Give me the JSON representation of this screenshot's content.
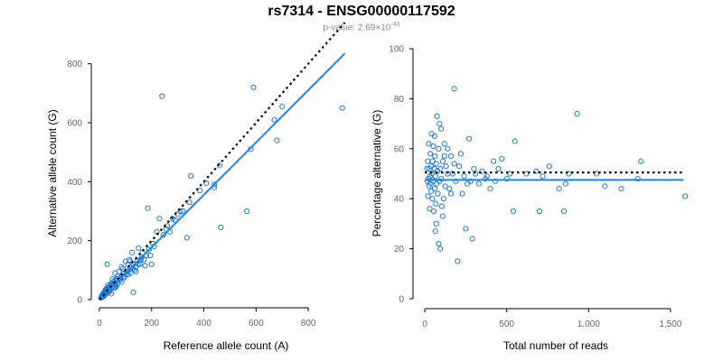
{
  "figure": {
    "title": "rs7314 - ENSG00000117592",
    "subtitle_prefix": "p-value: 2.69×10",
    "subtitle_exponent": "-43"
  },
  "colors": {
    "points": "#1f7ad6",
    "fit_line": "#1f86e8",
    "reference_line": "#000000",
    "tick_text": "#666666"
  },
  "chart_data": [
    {
      "type": "scatter",
      "title": "",
      "xlabel": "Reference allele count (A)",
      "ylabel": "Alternative allele count (G)",
      "xlim": [
        0,
        900
      ],
      "ylim": [
        0,
        900
      ],
      "xticks": [
        0,
        200,
        400,
        600,
        800
      ],
      "xtick_labels": [
        "0",
        "200",
        "400",
        "600",
        "800"
      ],
      "yticks": [
        0,
        200,
        400,
        600,
        800
      ],
      "ytick_labels": [
        "0",
        "200",
        "400",
        "600",
        "800"
      ],
      "reference_line": {
        "style": "dotted",
        "x": [
          0,
          940
        ],
        "y": [
          0,
          940
        ]
      },
      "fit_line": {
        "style": "solid",
        "x": [
          0,
          940
        ],
        "y": [
          0,
          835
        ]
      },
      "grid": false,
      "points": [
        [
          240,
          690
        ],
        [
          590,
          720
        ],
        [
          930,
          650
        ],
        [
          700,
          655
        ],
        [
          670,
          610
        ],
        [
          680,
          540
        ],
        [
          580,
          510
        ],
        [
          565,
          300
        ],
        [
          460,
          455
        ],
        [
          465,
          245
        ],
        [
          440,
          390
        ],
        [
          440,
          380
        ],
        [
          350,
          420
        ],
        [
          335,
          210
        ],
        [
          310,
          300
        ],
        [
          300,
          290
        ],
        [
          280,
          275
        ],
        [
          260,
          250
        ],
        [
          230,
          275
        ],
        [
          220,
          230
        ],
        [
          205,
          190
        ],
        [
          200,
          120
        ],
        [
          195,
          150
        ],
        [
          185,
          310
        ],
        [
          175,
          115
        ],
        [
          165,
          160
        ],
        [
          160,
          140
        ],
        [
          150,
          175
        ],
        [
          145,
          130
        ],
        [
          140,
          95
        ],
        [
          130,
          120
        ],
        [
          125,
          160
        ],
        [
          120,
          110
        ],
        [
          115,
          135
        ],
        [
          110,
          120
        ],
        [
          105,
          95
        ],
        [
          100,
          130
        ],
        [
          95,
          80
        ],
        [
          90,
          105
        ],
        [
          85,
          110
        ],
        [
          80,
          75
        ],
        [
          75,
          95
        ],
        [
          70,
          80
        ],
        [
          65,
          70
        ],
        [
          60,
          90
        ],
        [
          55,
          60
        ],
        [
          50,
          70
        ],
        [
          45,
          55
        ],
        [
          40,
          45
        ],
        [
          35,
          50
        ],
        [
          30,
          40
        ],
        [
          28,
          25
        ],
        [
          25,
          35
        ],
        [
          22,
          30
        ],
        [
          20,
          20
        ],
        [
          18,
          25
        ],
        [
          15,
          15
        ],
        [
          12,
          18
        ],
        [
          10,
          12
        ],
        [
          8,
          10
        ],
        [
          30,
          120
        ],
        [
          45,
          20
        ],
        [
          60,
          40
        ],
        [
          70,
          55
        ],
        [
          85,
          60
        ],
        [
          95,
          75
        ],
        [
          110,
          85
        ],
        [
          120,
          90
        ],
        [
          140,
          110
        ],
        [
          155,
          120
        ],
        [
          170,
          135
        ],
        [
          180,
          150
        ],
        [
          130,
          25
        ],
        [
          65,
          45
        ],
        [
          55,
          40
        ],
        [
          40,
          30
        ],
        [
          35,
          25
        ],
        [
          25,
          20
        ],
        [
          20,
          15
        ],
        [
          15,
          10
        ],
        [
          50,
          45
        ],
        [
          42,
          38
        ],
        [
          38,
          30
        ],
        [
          33,
          28
        ],
        [
          27,
          30
        ],
        [
          24,
          22
        ],
        [
          18,
          16
        ],
        [
          14,
          14
        ],
        [
          10,
          8
        ],
        [
          6,
          6
        ],
        [
          75,
          65
        ],
        [
          82,
          70
        ],
        [
          92,
          88
        ],
        [
          102,
          85
        ],
        [
          112,
          100
        ],
        [
          118,
          130
        ],
        [
          128,
          105
        ],
        [
          135,
          100
        ],
        [
          148,
          120
        ],
        [
          158,
          135
        ],
        [
          190,
          170
        ],
        [
          210,
          180
        ],
        [
          245,
          220
        ],
        [
          255,
          240
        ],
        [
          270,
          230
        ],
        [
          290,
          270
        ],
        [
          320,
          300
        ],
        [
          345,
          330
        ],
        [
          385,
          370
        ],
        [
          410,
          395
        ],
        [
          60,
          55
        ],
        [
          62,
          50
        ],
        [
          58,
          65
        ],
        [
          48,
          52
        ],
        [
          44,
          48
        ],
        [
          36,
          40
        ],
        [
          32,
          36
        ],
        [
          26,
          28
        ],
        [
          21,
          24
        ],
        [
          16,
          18
        ]
      ]
    },
    {
      "type": "scatter",
      "title": "",
      "xlabel": "Total number of reads",
      "ylabel": "Percentage alternative (G)",
      "xlim": [
        0,
        1600
      ],
      "ylim": [
        0,
        100
      ],
      "xticks": [
        0,
        500,
        1000,
        1500
      ],
      "xtick_labels": [
        "0",
        "500",
        "1,000",
        "1,500"
      ],
      "yticks": [
        0,
        20,
        40,
        60,
        80,
        100
      ],
      "ytick_labels": [
        "0",
        "20",
        "40",
        "60",
        "80",
        "100"
      ],
      "reference_line": {
        "style": "dotted",
        "x": [
          0,
          1580
        ],
        "y": [
          50.5,
          50.5
        ]
      },
      "fit_line": {
        "style": "solid",
        "x": [
          0,
          1580
        ],
        "y": [
          47.5,
          47.5
        ]
      },
      "grid": false,
      "points": [
        [
          1590,
          41
        ],
        [
          1320,
          55
        ],
        [
          1300,
          48
        ],
        [
          1200,
          44
        ],
        [
          1100,
          45
        ],
        [
          1050,
          50
        ],
        [
          930,
          74
        ],
        [
          880,
          50
        ],
        [
          860,
          46
        ],
        [
          850,
          35
        ],
        [
          820,
          44
        ],
        [
          760,
          53
        ],
        [
          720,
          49
        ],
        [
          700,
          35
        ],
        [
          680,
          51
        ],
        [
          620,
          50
        ],
        [
          550,
          63
        ],
        [
          540,
          35
        ],
        [
          520,
          50
        ],
        [
          470,
          56
        ],
        [
          450,
          52
        ],
        [
          430,
          47
        ],
        [
          400,
          44
        ],
        [
          370,
          48
        ],
        [
          350,
          51
        ],
        [
          310,
          50
        ],
        [
          290,
          24
        ],
        [
          270,
          64
        ],
        [
          260,
          46
        ],
        [
          250,
          28
        ],
        [
          230,
          42
        ],
        [
          210,
          53
        ],
        [
          200,
          15
        ],
        [
          190,
          47
        ],
        [
          180,
          84
        ],
        [
          170,
          50
        ],
        [
          160,
          57
        ],
        [
          150,
          44
        ],
        [
          140,
          50
        ],
        [
          130,
          53
        ],
        [
          125,
          45
        ],
        [
          120,
          62
        ],
        [
          115,
          40
        ],
        [
          110,
          55
        ],
        [
          105,
          37
        ],
        [
          100,
          48
        ],
        [
          95,
          52
        ],
        [
          90,
          47
        ],
        [
          85,
          60
        ],
        [
          80,
          42
        ],
        [
          78,
          51
        ],
        [
          75,
          73
        ],
        [
          72,
          46
        ],
        [
          70,
          54
        ],
        [
          68,
          38
        ],
        [
          65,
          49
        ],
        [
          62,
          57
        ],
        [
          60,
          44
        ],
        [
          58,
          52
        ],
        [
          55,
          35
        ],
        [
          52,
          61
        ],
        [
          50,
          47
        ],
        [
          48,
          55
        ],
        [
          46,
          40
        ],
        [
          44,
          50
        ],
        [
          42,
          66
        ],
        [
          40,
          43
        ],
        [
          38,
          53
        ],
        [
          36,
          46
        ],
        [
          34,
          58
        ],
        [
          32,
          49
        ],
        [
          30,
          36
        ],
        [
          28,
          52
        ],
        [
          26,
          45
        ],
        [
          24,
          62
        ],
        [
          22,
          48
        ],
        [
          20,
          41
        ],
        [
          18,
          55
        ],
        [
          16,
          47
        ],
        [
          14,
          52
        ],
        [
          85,
          22
        ],
        [
          95,
          20
        ],
        [
          70,
          30
        ],
        [
          110,
          33
        ],
        [
          65,
          27
        ],
        [
          90,
          70
        ],
        [
          100,
          68
        ],
        [
          60,
          65
        ],
        [
          120,
          57
        ],
        [
          140,
          60
        ],
        [
          160,
          42
        ],
        [
          180,
          54
        ],
        [
          220,
          58
        ],
        [
          240,
          49
        ],
        [
          280,
          47
        ],
        [
          300,
          52
        ],
        [
          330,
          46
        ],
        [
          380,
          49
        ],
        [
          420,
          55
        ],
        [
          500,
          48
        ]
      ]
    }
  ]
}
